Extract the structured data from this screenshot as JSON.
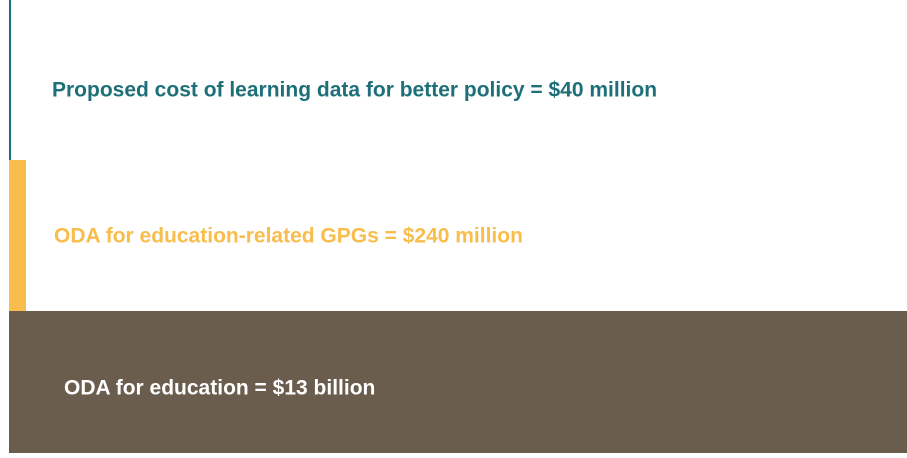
{
  "items": [
    {
      "label": "Proposed cost of learning data for better policy = $40 million"
    },
    {
      "label": "ODA for education-related GPGs = $240 million"
    },
    {
      "label": "ODA for education = $13 billion"
    }
  ]
}
